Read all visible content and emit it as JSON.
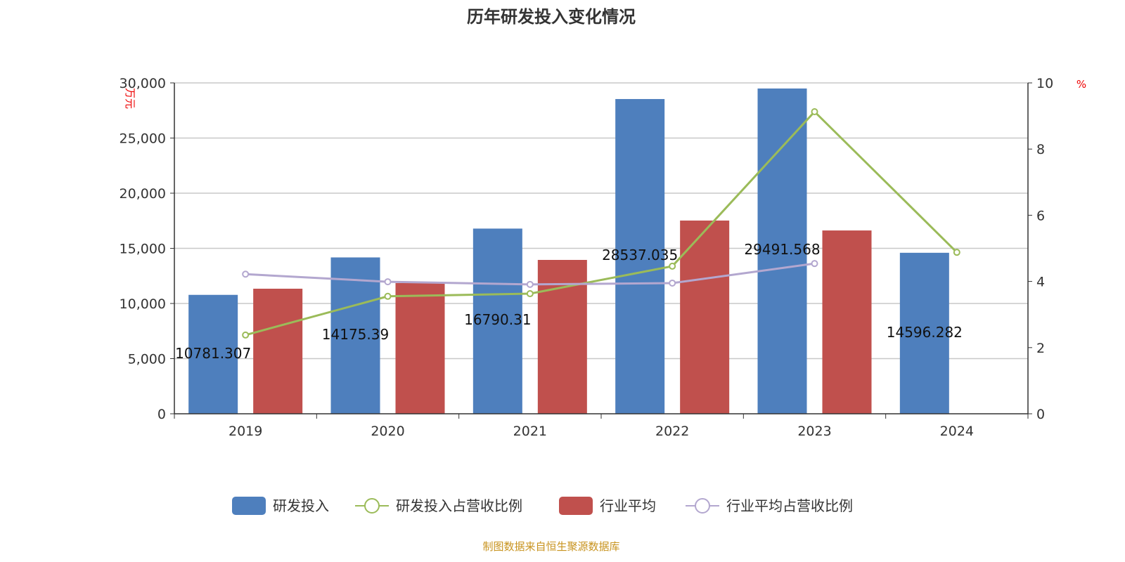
{
  "chart_data": {
    "type": "bar",
    "title": "历年研发投入变化情况",
    "categories": [
      "2019",
      "2020",
      "2021",
      "2022",
      "2023",
      "2024"
    ],
    "y_left": {
      "unit_label": "万元",
      "range": [
        0,
        30000
      ],
      "ticks": [
        "0",
        "5,000",
        "10,000",
        "15,000",
        "20,000",
        "25,000",
        "30,000"
      ]
    },
    "y_right": {
      "unit_label": "%",
      "range": [
        0,
        10
      ],
      "ticks": [
        "0",
        "2",
        "4",
        "6",
        "8",
        "10"
      ]
    },
    "grid": true,
    "legend_position": "bottom",
    "series": [
      {
        "name": "研发投入",
        "type": "bar",
        "axis": "left",
        "color": "#4e7fbd",
        "values": [
          10781.307,
          14175.39,
          16790.31,
          28537.035,
          29491.568,
          14596.282
        ],
        "labels": [
          "10781.307",
          "14175.39",
          "16790.31",
          "28537.035",
          "29491.568",
          "14596.282"
        ]
      },
      {
        "name": "研发投入占营收比例",
        "type": "line",
        "axis": "right",
        "color": "#9bbb59",
        "values": [
          2.38,
          3.55,
          3.63,
          4.46,
          9.13,
          4.88
        ]
      },
      {
        "name": "行业平均",
        "type": "bar",
        "axis": "left",
        "color": "#c0504d",
        "values": [
          11340,
          11850,
          13950,
          17520,
          16620,
          null
        ]
      },
      {
        "name": "行业平均占营收比例",
        "type": "line",
        "axis": "right",
        "color": "#b3a7cf",
        "values": [
          4.22,
          3.99,
          3.91,
          3.95,
          4.54,
          null
        ]
      }
    ],
    "source": "制图数据来自恒生聚源数据库"
  }
}
